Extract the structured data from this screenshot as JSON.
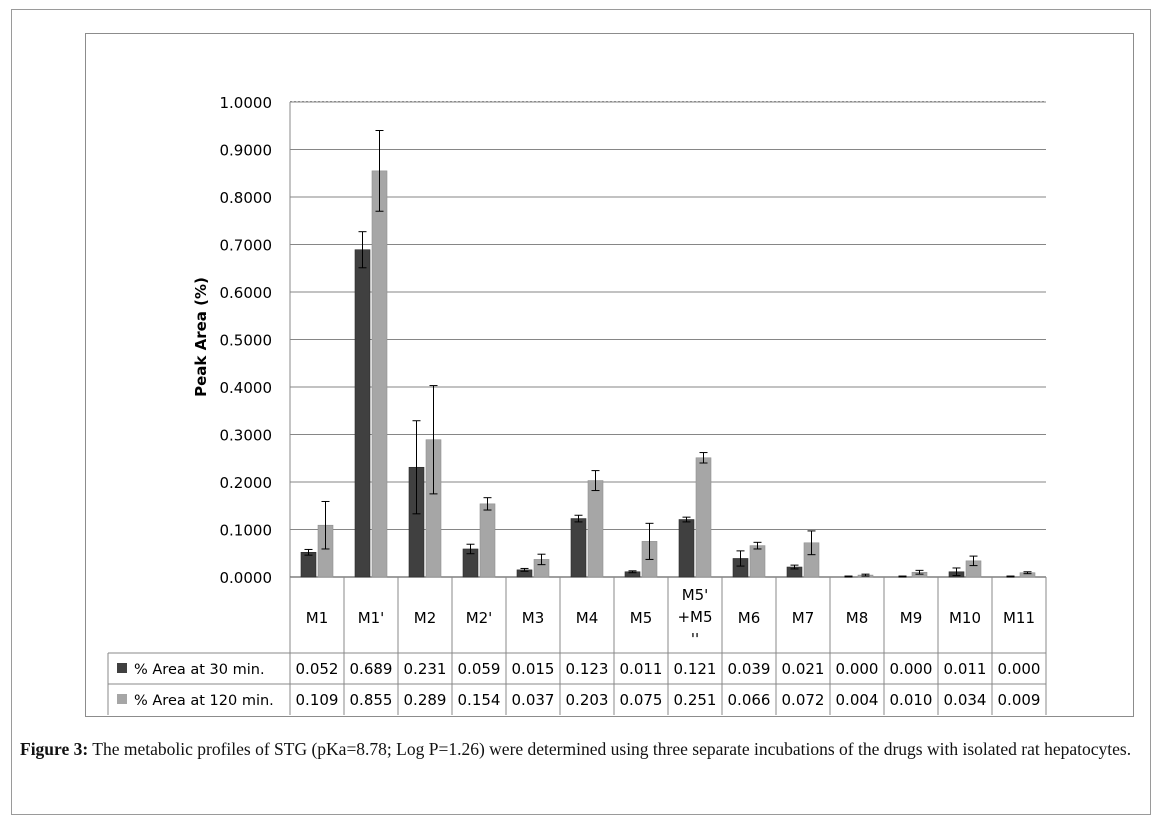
{
  "chart_data": {
    "type": "bar",
    "ylabel": "Peak Area (%)",
    "ylim": [
      0,
      1
    ],
    "yticks": [
      "0.0000",
      "0.1000",
      "0.2000",
      "0.3000",
      "0.4000",
      "0.5000",
      "0.6000",
      "0.7000",
      "0.8000",
      "0.9000",
      "1.0000"
    ],
    "categories": [
      "M1",
      "M1'",
      "M2",
      "M2'",
      "M3",
      "M4",
      "M5",
      "M5' +M5 ''",
      "M6",
      "M7",
      "M8",
      "M9",
      "M10",
      "M11"
    ],
    "grid": true,
    "legend": "data-table-rows",
    "series": [
      {
        "name": "% Area at 30 min.",
        "color": "#404040",
        "values": [
          0.052,
          0.689,
          0.231,
          0.059,
          0.015,
          0.123,
          0.011,
          0.121,
          0.039,
          0.021,
          0.0,
          0.0,
          0.011,
          0.0
        ],
        "table_values": [
          "0.052",
          "0.689",
          "0.231",
          "0.059",
          "0.015",
          "0.123",
          "0.011",
          "0.121",
          "0.039",
          "0.021",
          "0.000",
          "0.000",
          "0.011",
          "0.000"
        ],
        "errors": [
          0.006,
          0.038,
          0.098,
          0.01,
          0.003,
          0.007,
          0.002,
          0.005,
          0.016,
          0.004,
          0.002,
          0.002,
          0.008,
          0.002
        ]
      },
      {
        "name": "% Area at 120 min.",
        "color": "#a6a6a6",
        "values": [
          0.109,
          0.855,
          0.289,
          0.154,
          0.037,
          0.203,
          0.075,
          0.251,
          0.066,
          0.072,
          0.004,
          0.01,
          0.034,
          0.009
        ],
        "table_values": [
          "0.109",
          "0.855",
          "0.289",
          "0.154",
          "0.037",
          "0.203",
          "0.075",
          "0.251",
          "0.066",
          "0.072",
          "0.004",
          "0.010",
          "0.034",
          "0.009"
        ],
        "errors": [
          0.05,
          0.085,
          0.114,
          0.013,
          0.011,
          0.021,
          0.038,
          0.011,
          0.007,
          0.025,
          0.002,
          0.004,
          0.01,
          0.002
        ]
      }
    ]
  },
  "caption": {
    "label": "Figure 3:",
    "text": " The metabolic profiles of STG (pKa=8.78; Log P=1.26) were determined using three separate incubations of the drugs with isolated rat hepatocytes."
  }
}
